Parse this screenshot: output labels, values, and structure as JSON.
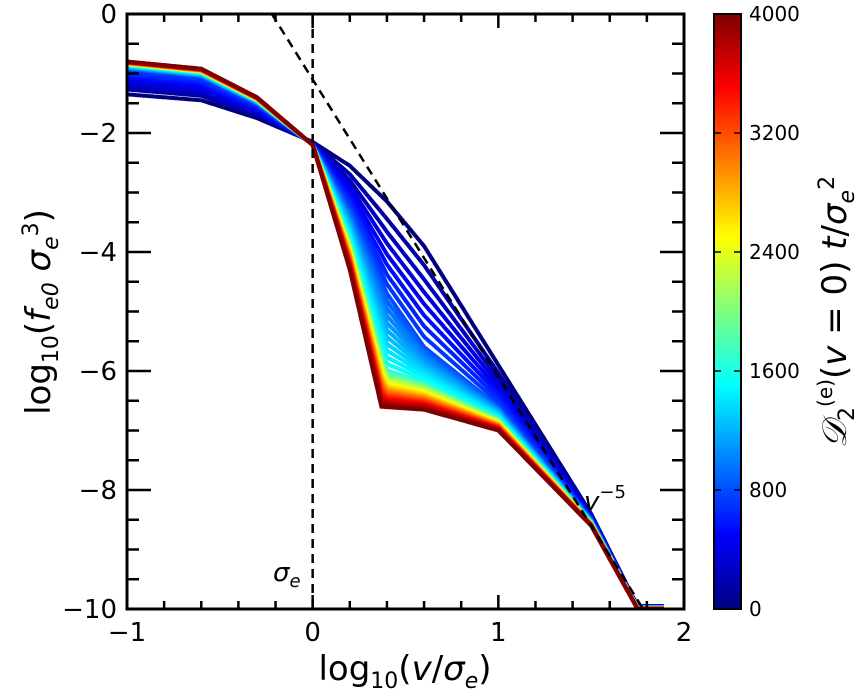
{
  "chart_data": {
    "type": "line",
    "title": "",
    "xlabel": "log10(v/σe)",
    "ylabel": "log10(fe0 σe³)",
    "xlim": [
      -1,
      2
    ],
    "ylim": [
      -10,
      0
    ],
    "x_ticks": [
      -1,
      0,
      1,
      2
    ],
    "x_tick_labels": [
      "−1",
      "0",
      "1",
      "2"
    ],
    "y_ticks": [
      0,
      -2,
      -4,
      -6,
      -8,
      -10
    ],
    "y_tick_labels": [
      "0",
      "−2",
      "−4",
      "−6",
      "−8",
      "−10"
    ],
    "grid": false,
    "series_description": "Family of distribution-function curves colored by time on a jet colormap; early times (blue) are high-tailed power laws, late times (red) drop steeply past v≈σe to a plateau near −6.6 then fall as a power law",
    "series": [
      {
        "name": "t=0",
        "t": 0,
        "x": [
          -1.0,
          -0.6,
          -0.3,
          0.0,
          0.2,
          0.4,
          0.6,
          1.0,
          1.5,
          1.75
        ],
        "y": [
          -1.35,
          -1.45,
          -1.75,
          -2.15,
          -2.55,
          -3.15,
          -3.9,
          -5.9,
          -8.4,
          -9.95
        ]
      },
      {
        "name": "t=800",
        "t": 800,
        "x": [
          -1.0,
          -0.6,
          -0.3,
          0.0,
          0.2,
          0.4,
          0.6,
          1.0,
          1.5,
          1.75
        ],
        "y": [
          -0.92,
          -1.05,
          -1.5,
          -2.2,
          -3.3,
          -4.7,
          -5.6,
          -6.6,
          -8.5,
          -9.97
        ]
      },
      {
        "name": "t=1600",
        "t": 1600,
        "x": [
          -1.0,
          -0.6,
          -0.3,
          0.0,
          0.2,
          0.4,
          0.6,
          1.0,
          1.5,
          1.75
        ],
        "y": [
          -0.85,
          -0.98,
          -1.45,
          -2.2,
          -3.8,
          -6.0,
          -6.2,
          -6.8,
          -8.55,
          -9.98
        ]
      },
      {
        "name": "t=4000",
        "t": 4000,
        "x": [
          -1.0,
          -0.6,
          -0.3,
          0.0,
          0.2,
          0.37,
          0.6,
          1.0,
          1.5,
          1.75
        ],
        "y": [
          -0.8,
          -0.92,
          -1.4,
          -2.2,
          -4.3,
          -6.6,
          -6.65,
          -7.0,
          -8.6,
          -10.0
        ]
      }
    ],
    "reference_lines": [
      {
        "name": "v^-5 power law",
        "style": "dashed",
        "x": [
          -0.22,
          1.78
        ],
        "y": [
          0.0,
          -10.0
        ]
      },
      {
        "name": "σe",
        "style": "dashed",
        "orientation": "vertical",
        "x": 0.0
      }
    ],
    "annotations": [
      {
        "text": "σe",
        "x": -0.14,
        "y": -9.45
      },
      {
        "text": "v⁻⁵",
        "x": 1.48,
        "y": -8.2
      }
    ],
    "colorbar": {
      "label": "D2(e)(v = 0) t/σe²",
      "colormap": "jet",
      "range": [
        0,
        4000
      ],
      "ticks": [
        0,
        800,
        1600,
        2400,
        3200,
        4000
      ],
      "tick_labels": [
        "0",
        "800",
        "1600",
        "2400",
        "3200",
        "4000"
      ]
    }
  },
  "colors": {
    "jet": [
      "#00007f",
      "#0000ff",
      "#007fff",
      "#00ffff",
      "#7fff7f",
      "#ffff00",
      "#ff7f00",
      "#ff0000",
      "#7f0000"
    ],
    "reference": "#000000"
  }
}
